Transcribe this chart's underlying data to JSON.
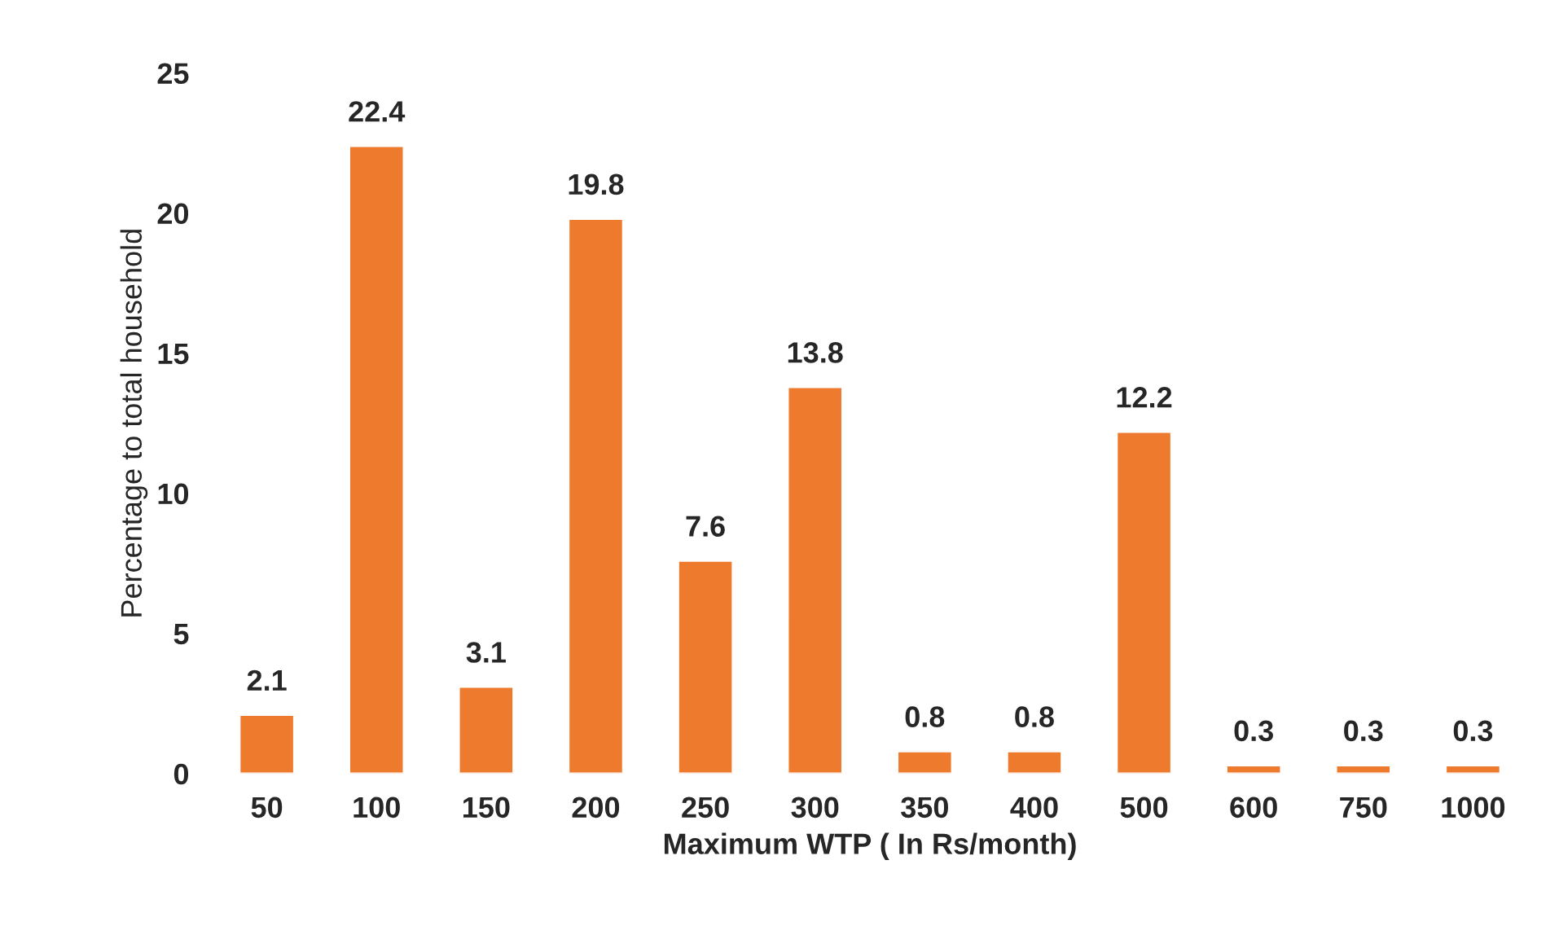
{
  "chart_data": {
    "type": "bar",
    "xlabel": "Maximum WTP ( In Rs/month)",
    "ylabel": "Percentage to total household",
    "categories": [
      "50",
      "100",
      "150",
      "200",
      "250",
      "300",
      "350",
      "400",
      "500",
      "600",
      "750",
      "1000"
    ],
    "values": [
      2.1,
      22.4,
      3.1,
      19.8,
      7.6,
      13.8,
      0.8,
      0.8,
      12.2,
      0.3,
      0.3,
      0.3
    ],
    "color": "#ee7a2e",
    "ylim": [
      0,
      25
    ],
    "yticks": [
      0,
      5,
      10,
      15,
      20,
      25
    ],
    "grid": false,
    "data_labels": true
  }
}
